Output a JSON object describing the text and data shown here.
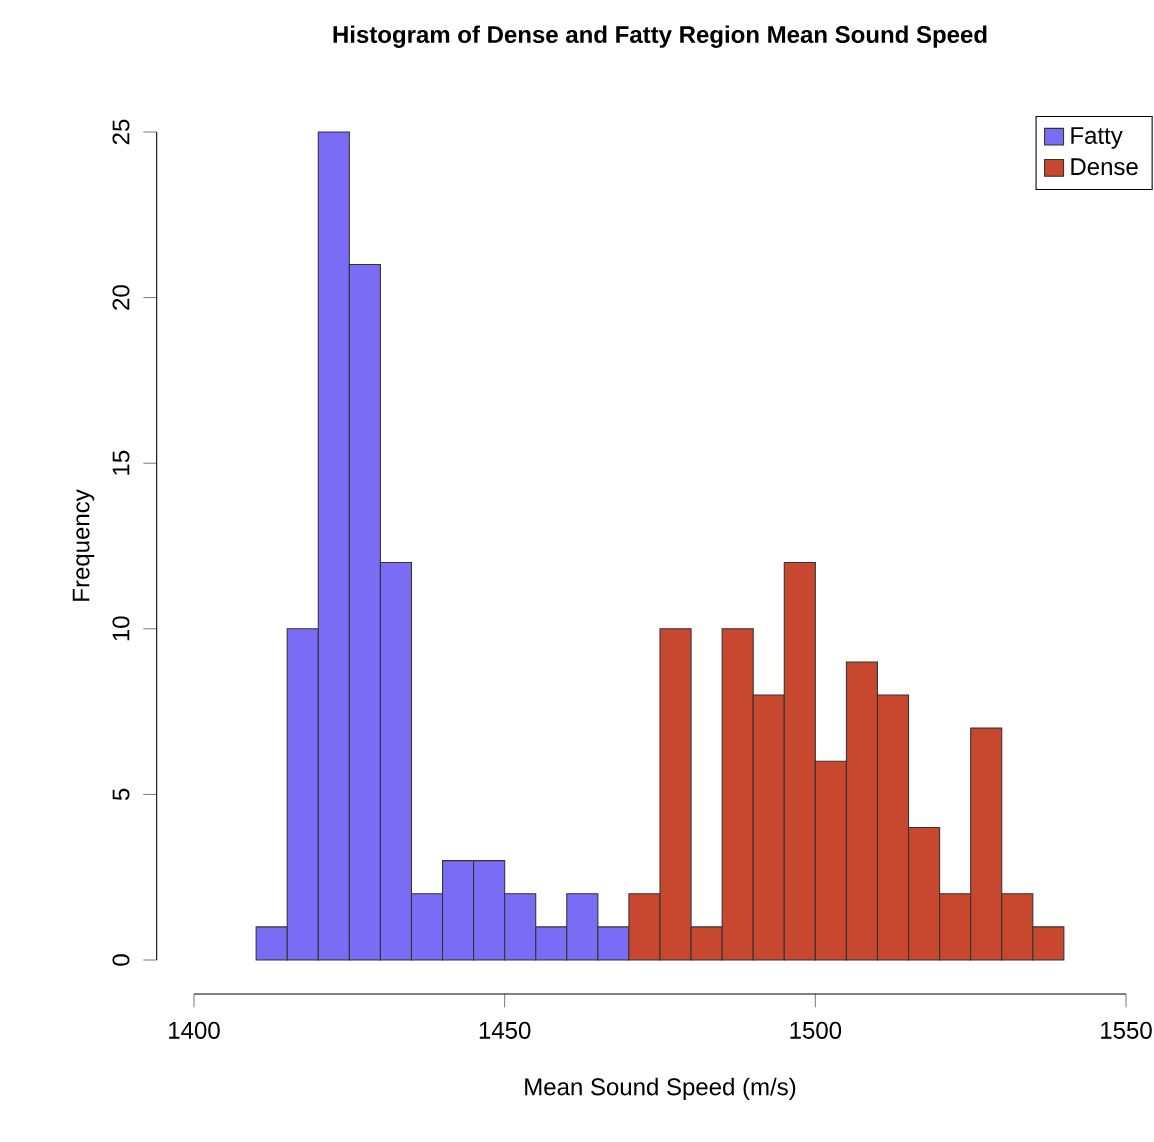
{
  "chart_data": {
    "type": "histogram",
    "title": "Histogram of Dense and Fatty Region Mean Sound Speed",
    "xlabel": "Mean Sound Speed (m/s)",
    "ylabel": "Frequency",
    "bins": [
      1410,
      1415,
      1420,
      1425,
      1430,
      1435,
      1440,
      1445,
      1450,
      1455,
      1460,
      1465,
      1470,
      1475,
      1480,
      1485,
      1490,
      1495,
      1500,
      1505,
      1510,
      1515,
      1520,
      1525,
      1530,
      1535,
      1540
    ],
    "series": [
      {
        "name": "Fatty",
        "color": "#7b6cf5",
        "values": [
          1,
          10,
          25,
          21,
          12,
          2,
          3,
          3,
          2,
          1,
          2,
          1,
          null,
          null,
          null,
          null,
          null,
          null,
          null,
          null,
          null,
          null,
          null,
          null,
          null,
          null
        ]
      },
      {
        "name": "Dense",
        "color": "#c8472f",
        "values": [
          null,
          null,
          null,
          null,
          null,
          null,
          null,
          null,
          null,
          null,
          null,
          null,
          2,
          10,
          1,
          10,
          8,
          12,
          6,
          9,
          8,
          4,
          2,
          7,
          2,
          1
        ]
      }
    ],
    "xlim": [
      1400,
      1550
    ],
    "ylim": [
      0,
      25
    ],
    "xticks": [
      1400,
      1450,
      1500,
      1550
    ],
    "yticks": [
      0,
      5,
      10,
      15,
      20,
      25
    ],
    "legend": "top right"
  }
}
